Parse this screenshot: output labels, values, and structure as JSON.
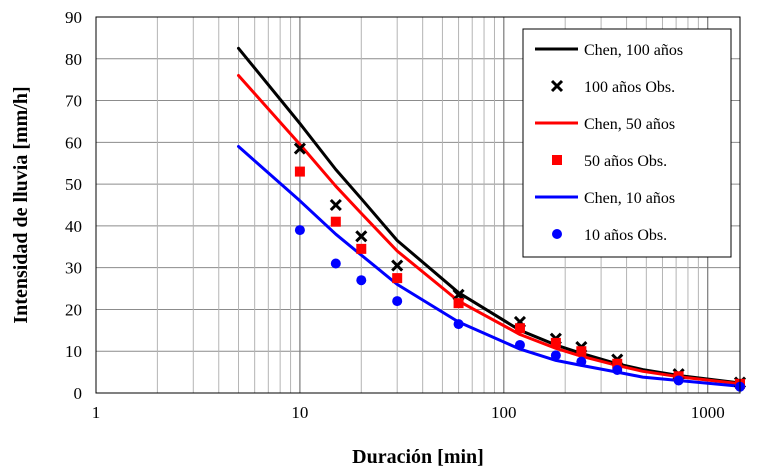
{
  "chart_data": {
    "type": "line",
    "xlabel": "Duración [min]",
    "ylabel": "Intensidad de lluvia [mm/h]",
    "xscale": "log",
    "xlim": [
      1,
      1440
    ],
    "ylim": [
      0,
      90
    ],
    "xticks": [
      1,
      10,
      100,
      1000
    ],
    "xtick_labels": [
      "1",
      "10",
      "100",
      "1000"
    ],
    "yticks": [
      0,
      10,
      20,
      30,
      40,
      50,
      60,
      70,
      80,
      90
    ],
    "ytick_labels": [
      "0",
      "10",
      "20",
      "30",
      "40",
      "50",
      "60",
      "70",
      "80",
      "90"
    ],
    "grid": true,
    "legend_position": "top-right",
    "series": [
      {
        "name": "Chen, 100 años",
        "kind": "line",
        "color": "#000000",
        "x": [
          5,
          10,
          15,
          20,
          30,
          60,
          120,
          180,
          240,
          360,
          480,
          720,
          1440
        ],
        "y": [
          82.5,
          64.5,
          53.5,
          46.5,
          36.5,
          24,
          15,
          11.5,
          9.5,
          7,
          5.6,
          4.2,
          2.4
        ]
      },
      {
        "name": "100 años Obs.",
        "kind": "marker",
        "marker": "x",
        "color": "#000000",
        "x": [
          10,
          15,
          20,
          30,
          60,
          120,
          180,
          240,
          360,
          720,
          1440
        ],
        "y": [
          58.5,
          45,
          37.5,
          30.5,
          23.5,
          17,
          13,
          11,
          8,
          4.5,
          2.5
        ]
      },
      {
        "name": "Chen, 50 años",
        "kind": "line",
        "color": "#ff0000",
        "x": [
          5,
          10,
          15,
          20,
          30,
          60,
          120,
          180,
          240,
          360,
          480,
          720,
          1440
        ],
        "y": [
          76,
          59.5,
          49.5,
          43,
          34,
          22,
          14,
          10.7,
          8.8,
          6.6,
          5.2,
          3.9,
          2.2
        ]
      },
      {
        "name": "50 años Obs.",
        "kind": "marker",
        "marker": "square",
        "color": "#ff0000",
        "x": [
          10,
          15,
          20,
          30,
          60,
          120,
          180,
          240,
          360,
          720,
          1440
        ],
        "y": [
          53,
          41,
          34.5,
          27.5,
          21.5,
          15.5,
          12,
          10,
          7,
          4,
          2.2
        ]
      },
      {
        "name": "Chen, 10 años",
        "kind": "line",
        "color": "#0000ff",
        "x": [
          5,
          10,
          15,
          20,
          30,
          60,
          120,
          180,
          240,
          360,
          480,
          720,
          1440
        ],
        "y": [
          59,
          46,
          38,
          33,
          26,
          17,
          10.5,
          7.8,
          6.6,
          5,
          3.8,
          3,
          1.6
        ]
      },
      {
        "name": "10 años Obs.",
        "kind": "marker",
        "marker": "circle",
        "color": "#0000ff",
        "x": [
          10,
          15,
          20,
          30,
          60,
          120,
          180,
          240,
          360,
          720,
          1440
        ],
        "y": [
          39,
          31,
          27,
          22,
          16.5,
          11.5,
          9,
          7.5,
          5.5,
          3,
          1.5
        ]
      }
    ]
  }
}
